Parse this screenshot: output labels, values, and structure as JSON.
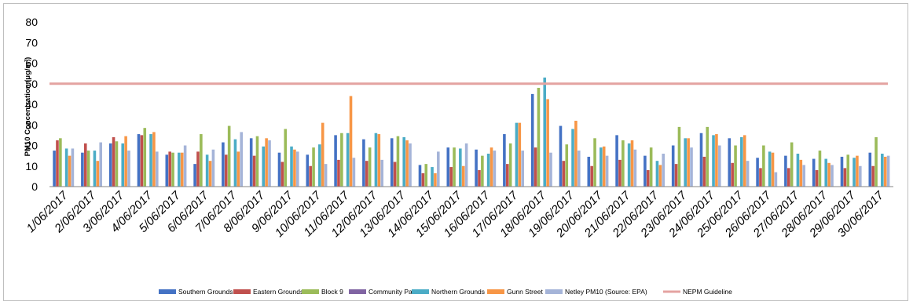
{
  "chart_data": {
    "type": "bar",
    "ylabel": "PM10 Concentration (μg/m³)",
    "ylim": [
      0,
      80
    ],
    "yticks": [
      "0",
      "10",
      "20",
      "30",
      "40",
      "50",
      "60",
      "70",
      "80"
    ],
    "grid": false,
    "legend_position": "bottom",
    "categories": [
      "1/06/2017",
      "2/06/2017",
      "3/06/2017",
      "4/06/2017",
      "5/06/2017",
      "6/06/2017",
      "7/06/2017",
      "8/06/2017",
      "9/06/2017",
      "10/06/2017",
      "11/06/2017",
      "12/06/2017",
      "13/06/2017",
      "14/06/2017",
      "15/06/2017",
      "16/06/2017",
      "17/06/2017",
      "18/06/2017",
      "19/06/2017",
      "20/06/2017",
      "21/06/2017",
      "22/06/2017",
      "23/06/2017",
      "24/06/2017",
      "25/06/2017",
      "26/06/2017",
      "27/06/2017",
      "28/06/2017",
      "29/06/2017",
      "30/06/2017"
    ],
    "series": [
      {
        "name": "Southern Grounds",
        "color": "#4472c4",
        "values": [
          17.5,
          16.5,
          21,
          25.5,
          15.5,
          11,
          21.5,
          23.5,
          16.5,
          15.5,
          25,
          23,
          23.5,
          10.5,
          19,
          18,
          25.5,
          45,
          29.5,
          14.5,
          25,
          15,
          20,
          26,
          23.5,
          14,
          15,
          13.5,
          14.5,
          16.5
        ]
      },
      {
        "name": "Eastern Grounds",
        "color": "#c0504d",
        "values": [
          22.5,
          21,
          24,
          25,
          17,
          17,
          15.5,
          15,
          12,
          10,
          13,
          12.5,
          12,
          6.5,
          9.5,
          8,
          11,
          19,
          12.5,
          10,
          13,
          8,
          11,
          14.5,
          11.5,
          9,
          9,
          8,
          9,
          10
        ]
      },
      {
        "name": "Block 9",
        "color": "#9bbb59",
        "values": [
          23.5,
          17.5,
          22,
          28.5,
          16.5,
          25.5,
          29.5,
          24.5,
          28,
          19,
          26,
          19,
          24.5,
          11,
          19,
          15,
          21,
          48,
          20.5,
          23.5,
          22.5,
          19,
          29,
          29,
          20,
          20,
          21.5,
          17.5,
          15.5,
          24
        ]
      },
      {
        "name": "Community Park",
        "color": "#8064a2",
        "values": [
          0,
          0,
          0,
          0,
          0,
          0,
          0,
          0,
          0,
          0,
          0,
          0,
          0,
          0,
          0,
          0,
          0,
          0,
          0,
          0,
          0,
          0,
          0,
          0,
          0,
          0,
          0,
          0,
          0,
          0
        ]
      },
      {
        "name": "Northern Grounds",
        "color": "#4bacc6",
        "values": [
          18.5,
          17.5,
          21,
          25.5,
          16.5,
          15.5,
          23,
          19.5,
          19.5,
          20.5,
          26,
          26,
          24,
          9.5,
          18.5,
          16,
          31,
          53,
          28,
          19,
          21,
          12.5,
          23.5,
          25,
          24,
          17,
          16,
          13.5,
          14,
          16
        ]
      },
      {
        "name": "Gunn Street",
        "color": "#f79646",
        "values": [
          15,
          12.5,
          24.5,
          26.5,
          16.5,
          12.5,
          17,
          23.5,
          18,
          31,
          44,
          25.5,
          22.5,
          6.5,
          10,
          19,
          31,
          42.5,
          32,
          19.5,
          22.5,
          10.5,
          23.5,
          25.5,
          25,
          16.5,
          13,
          11.5,
          15,
          14.5
        ]
      },
      {
        "name": "Netley PM10 (Source: EPA)",
        "color": "#a5b4d8",
        "values": [
          18.5,
          21.5,
          17.5,
          17,
          20,
          18,
          26.5,
          22.5,
          17,
          11,
          14,
          13,
          21,
          17,
          21,
          17.5,
          17.5,
          16.5,
          17.5,
          15,
          18,
          16,
          19,
          20,
          12.5,
          7,
          10.5,
          10.5,
          10,
          15
        ]
      }
    ],
    "reference_line": {
      "name": "NEPM Guideline",
      "value": 50,
      "color": "#e4a3a1"
    }
  }
}
